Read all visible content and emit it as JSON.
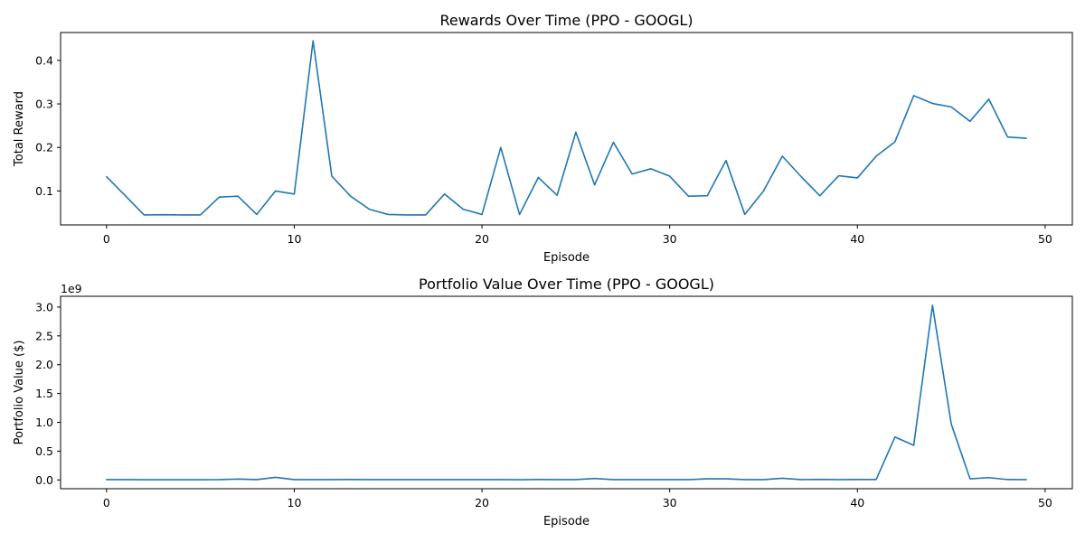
{
  "chart_data": [
    {
      "type": "line",
      "title": "Rewards Over Time (PPO - GOOGL)",
      "xlabel": "Episode",
      "ylabel": "Total Reward",
      "xlim": [
        -2.45,
        51.45
      ],
      "ylim": [
        0.022,
        0.464
      ],
      "xticks": [
        0,
        10,
        20,
        30,
        40,
        50
      ],
      "xtick_labels": [
        "0",
        "10",
        "20",
        "30",
        "40",
        "50"
      ],
      "yticks": [
        0.1,
        0.2,
        0.3,
        0.4
      ],
      "ytick_labels": [
        "0.1",
        "0.2",
        "0.3",
        "0.4"
      ],
      "grid": false,
      "series": [
        {
          "name": "",
          "color": "#1f77b4",
          "x": [
            0,
            1,
            2,
            3,
            4,
            5,
            6,
            7,
            8,
            9,
            10,
            11,
            12,
            13,
            14,
            15,
            16,
            17,
            18,
            19,
            20,
            21,
            22,
            23,
            24,
            25,
            26,
            27,
            28,
            29,
            30,
            31,
            32,
            33,
            34,
            35,
            36,
            37,
            38,
            39,
            40,
            41,
            42,
            43,
            44,
            45,
            46,
            47,
            48,
            49
          ],
          "y": [
            0.133,
            0.089,
            0.045,
            0.0455,
            0.045,
            0.045,
            0.086,
            0.088,
            0.046,
            0.1,
            0.093,
            0.445,
            0.134,
            0.088,
            0.058,
            0.046,
            0.045,
            0.045,
            0.093,
            0.058,
            0.046,
            0.2,
            0.046,
            0.131,
            0.09,
            0.235,
            0.114,
            0.212,
            0.139,
            0.151,
            0.134,
            0.088,
            0.089,
            0.17,
            0.046,
            0.1,
            0.18,
            0.133,
            0.089,
            0.135,
            0.13,
            0.18,
            0.213,
            0.319,
            0.301,
            0.293,
            0.26,
            0.311,
            0.224,
            0.221
          ]
        }
      ]
    },
    {
      "type": "line",
      "title": "Portfolio Value Over Time (PPO - GOOGL)",
      "xlabel": "Episode",
      "ylabel": "Portfolio Value ($)",
      "y_offset_label": "1e9",
      "xlim": [
        -2.45,
        51.45
      ],
      "ylim": [
        -0.152,
        3.187
      ],
      "xticks": [
        0,
        10,
        20,
        30,
        40,
        50
      ],
      "xtick_labels": [
        "0",
        "10",
        "20",
        "30",
        "40",
        "50"
      ],
      "yticks": [
        0.0,
        0.5,
        1.0,
        1.5,
        2.0,
        2.5,
        3.0
      ],
      "ytick_labels": [
        "0.0",
        "0.5",
        "1.0",
        "1.5",
        "2.0",
        "2.5",
        "3.0"
      ],
      "grid": false,
      "series": [
        {
          "name": "",
          "color": "#1f77b4",
          "x": [
            0,
            1,
            2,
            3,
            4,
            5,
            6,
            7,
            8,
            9,
            10,
            11,
            12,
            13,
            14,
            15,
            16,
            17,
            18,
            19,
            20,
            21,
            22,
            23,
            24,
            25,
            26,
            27,
            28,
            29,
            30,
            31,
            32,
            33,
            34,
            35,
            36,
            37,
            38,
            39,
            40,
            41,
            42,
            43,
            44,
            45,
            46,
            47,
            48,
            49
          ],
          "y": [
            0.005,
            0.005,
            0.004,
            0.004,
            0.004,
            0.004,
            0.005,
            0.015,
            0.005,
            0.045,
            0.005,
            0.005,
            0.005,
            0.008,
            0.006,
            0.005,
            0.005,
            0.005,
            0.005,
            0.005,
            0.005,
            0.005,
            0.004,
            0.008,
            0.005,
            0.005,
            0.025,
            0.006,
            0.006,
            0.005,
            0.005,
            0.005,
            0.02,
            0.02,
            0.006,
            0.006,
            0.03,
            0.006,
            0.01,
            0.006,
            0.008,
            0.007,
            0.745,
            0.6,
            3.03,
            0.97,
            0.02,
            0.04,
            0.007,
            0.005
          ]
        }
      ]
    }
  ]
}
